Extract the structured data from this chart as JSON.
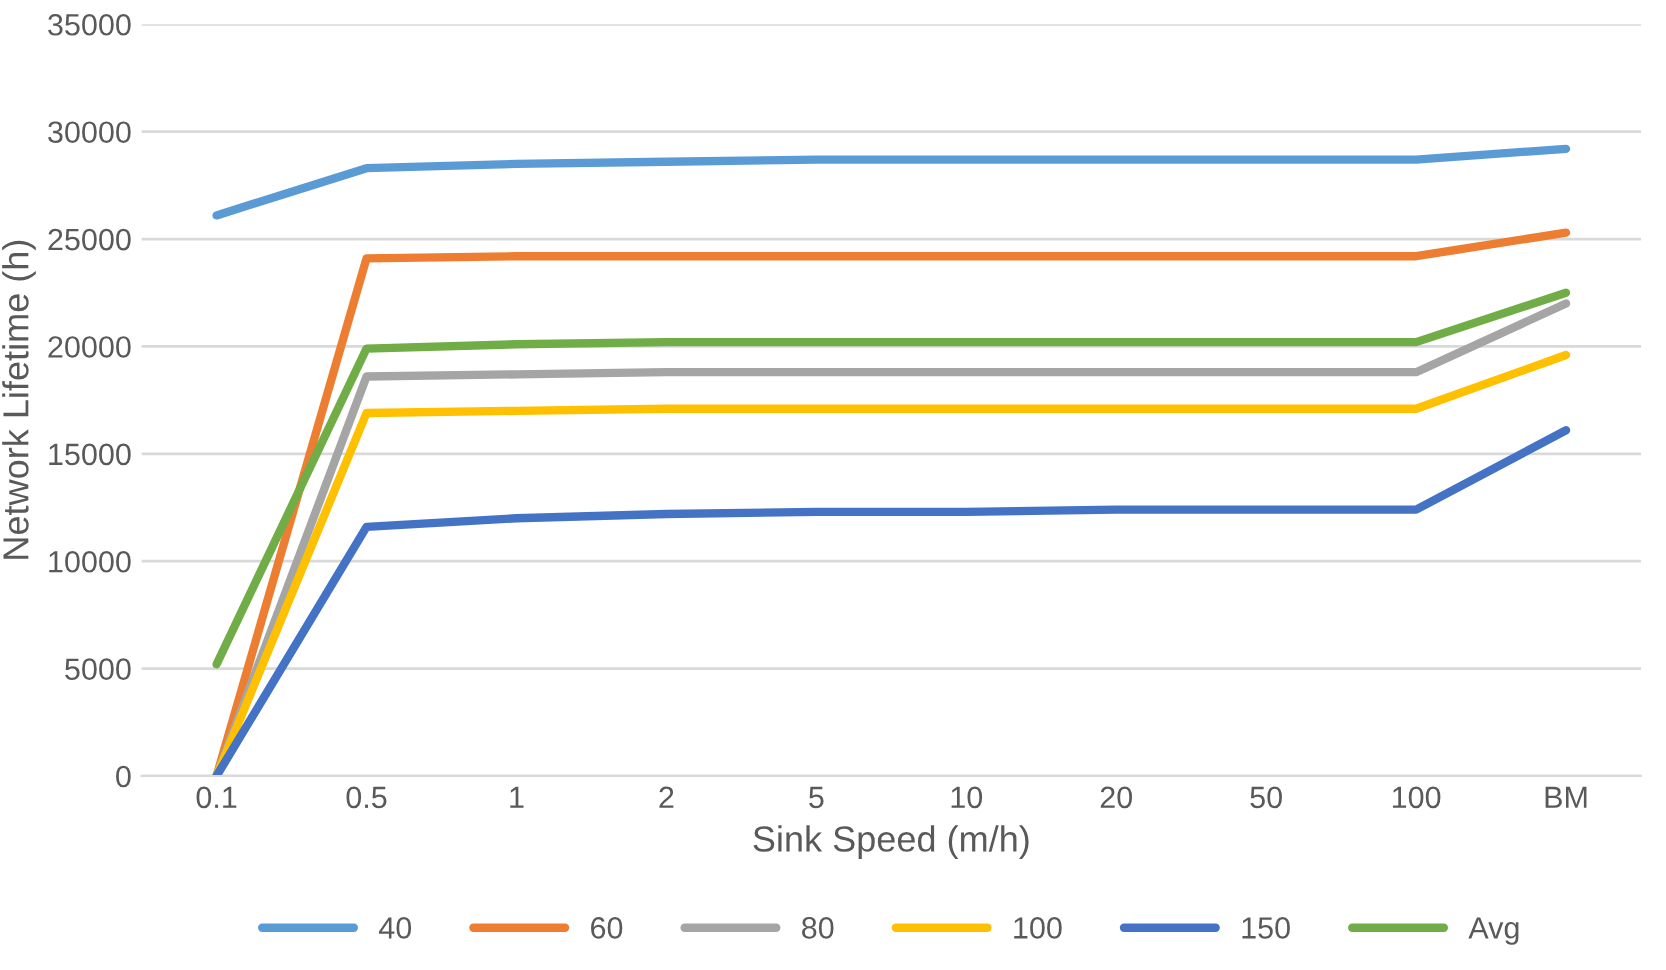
{
  "chart_data": {
    "type": "line",
    "xlabel": "Sink Speed (m/h)",
    "ylabel": "Network Lifetime (h)",
    "categories": [
      "0.1",
      "0.5",
      "1",
      "2",
      "5",
      "10",
      "20",
      "50",
      "100",
      "BM"
    ],
    "series": [
      {
        "name": "40",
        "color": "#5b9bd5",
        "values": [
          26100,
          28300,
          28500,
          28600,
          28700,
          28700,
          28700,
          28700,
          28700,
          29200
        ]
      },
      {
        "name": "60",
        "color": "#ed7d31",
        "values": [
          0,
          24100,
          24200,
          24200,
          24200,
          24200,
          24200,
          24200,
          24200,
          25300
        ]
      },
      {
        "name": "80",
        "color": "#a5a5a5",
        "values": [
          0,
          18600,
          18700,
          18800,
          18800,
          18800,
          18800,
          18800,
          18800,
          22000
        ]
      },
      {
        "name": "100",
        "color": "#ffc000",
        "values": [
          0,
          16900,
          17000,
          17100,
          17100,
          17100,
          17100,
          17100,
          17100,
          19600
        ]
      },
      {
        "name": "150",
        "color": "#4472c4",
        "values": [
          0,
          11600,
          12000,
          12200,
          12300,
          12300,
          12400,
          12400,
          12400,
          16100
        ]
      },
      {
        "name": "Avg",
        "color": "#70ad47",
        "values": [
          5200,
          19900,
          20100,
          20200,
          20200,
          20200,
          20200,
          20200,
          20200,
          22500
        ]
      }
    ],
    "ylim": [
      0,
      35000
    ],
    "yticks": [
      0,
      5000,
      10000,
      15000,
      20000,
      25000,
      30000,
      35000
    ],
    "grid": "y",
    "legend": "bottom",
    "marker": "none",
    "line_style": "solid"
  }
}
